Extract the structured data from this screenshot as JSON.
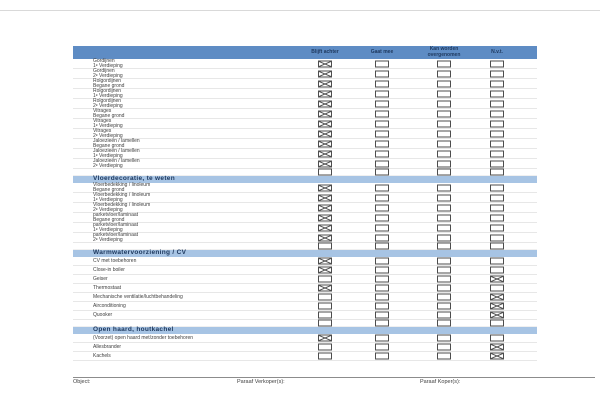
{
  "table": {
    "columns": [
      "Blijft achter",
      "Gaat mee",
      "Kan worden overgenomen",
      "N.v.t."
    ],
    "column_keys": [
      "blijft-achter",
      "gaat-mee",
      "kan-worden-overgenomen",
      "nvt"
    ],
    "sections": [
      {
        "title": "",
        "rows": [
          {
            "label": "Gordijnen",
            "sub": "1ᵉ Verdieping",
            "checks": [
              1,
              0,
              0,
              0
            ]
          },
          {
            "label": "Gordijnen",
            "sub": "2ᵉ Verdieping",
            "checks": [
              1,
              0,
              0,
              0
            ]
          },
          {
            "label": "Rolgordijnen",
            "sub": "Begane grond",
            "checks": [
              1,
              0,
              0,
              0
            ]
          },
          {
            "label": "Rolgordijnen",
            "sub": "1ᵉ Verdieping",
            "checks": [
              1,
              0,
              0,
              0
            ]
          },
          {
            "label": "Rolgordijnen",
            "sub": "2ᵉ Verdieping",
            "checks": [
              1,
              0,
              0,
              0
            ]
          },
          {
            "label": "Vitrages",
            "sub": "Begane grond",
            "checks": [
              1,
              0,
              0,
              0
            ]
          },
          {
            "label": "Vitrages",
            "sub": "1ᵉ Verdieping",
            "checks": [
              1,
              0,
              0,
              0
            ]
          },
          {
            "label": "Vitrages",
            "sub": "2ᵉ Verdieping",
            "checks": [
              1,
              0,
              0,
              0
            ]
          },
          {
            "label": "Jaloezieën / lamellen",
            "sub": "Begane grond",
            "checks": [
              1,
              0,
              0,
              0
            ]
          },
          {
            "label": "Jaloezieën / lamellen",
            "sub": "1ᵉ Verdieping",
            "checks": [
              1,
              0,
              0,
              0
            ]
          },
          {
            "label": "Jaloezieën / lamellen",
            "sub": "2ᵉ Verdieping",
            "checks": [
              1,
              0,
              0,
              0
            ]
          },
          {
            "label": "",
            "sub": "",
            "checks": [
              0,
              0,
              0,
              0
            ]
          }
        ]
      },
      {
        "title": "Vloerdecoratie, te weten",
        "rows": [
          {
            "label": "Vloerbedekking / linoleum",
            "sub": "Begane grond",
            "checks": [
              1,
              0,
              0,
              0
            ]
          },
          {
            "label": "Vloerbedekking / linoleum",
            "sub": "1ᵉ Verdieping",
            "checks": [
              1,
              0,
              0,
              0
            ]
          },
          {
            "label": "Vloerbedekking / linoleum",
            "sub": "2ᵉ Verdieping",
            "checks": [
              1,
              0,
              0,
              0
            ]
          },
          {
            "label": "parketvloer/laminaat",
            "sub": "Begane grond",
            "checks": [
              1,
              0,
              0,
              0
            ]
          },
          {
            "label": "parketvloer/laminaat",
            "sub": "1ᵉ Verdieping",
            "checks": [
              1,
              0,
              0,
              0
            ]
          },
          {
            "label": "parketvloer/laminaat",
            "sub": "2ᵉ Verdieping",
            "checks": [
              1,
              0,
              0,
              0
            ]
          },
          {
            "label": "",
            "sub": "",
            "checks": [
              0,
              0,
              0,
              0
            ]
          }
        ]
      },
      {
        "title": "Warmwatervoorziening / CV",
        "rows": [
          {
            "label": "CV met toebehoren",
            "sub": "",
            "checks": [
              1,
              0,
              0,
              0
            ]
          },
          {
            "label": "Close-in boiler",
            "sub": "",
            "checks": [
              1,
              0,
              0,
              0
            ]
          },
          {
            "label": "Geiser",
            "sub": "",
            "checks": [
              0,
              0,
              0,
              1
            ]
          },
          {
            "label": "Thermostaat",
            "sub": "",
            "checks": [
              1,
              0,
              0,
              0
            ]
          },
          {
            "label": "Mechanische ventilatie/luchtbehandeling",
            "sub": "",
            "checks": [
              0,
              0,
              0,
              1
            ]
          },
          {
            "label": "Airconditioning",
            "sub": "",
            "checks": [
              0,
              0,
              0,
              1
            ]
          },
          {
            "label": "Quooker",
            "sub": "",
            "checks": [
              0,
              0,
              0,
              1
            ]
          },
          {
            "label": "",
            "sub": "",
            "checks": [
              0,
              0,
              0,
              0
            ]
          }
        ]
      },
      {
        "title": "Open haard, houtkachel",
        "rows": [
          {
            "label": "(Voorzet) open haard met/zonder toebehoren",
            "sub": "",
            "checks": [
              1,
              0,
              0,
              0
            ]
          },
          {
            "label": "Allesbrander",
            "sub": "",
            "checks": [
              0,
              0,
              0,
              1
            ]
          },
          {
            "label": "Kachels",
            "sub": "",
            "checks": [
              0,
              0,
              0,
              1
            ]
          }
        ]
      }
    ]
  },
  "footer": {
    "object_label": "Object:",
    "paraaf_verkoper_label": "Paraaf Verkoper(s):",
    "paraaf_koper_label": "Paraaf Koper(s):"
  },
  "colors": {
    "header_bar": "#5e8cc4",
    "section_bar": "#a7c4e4",
    "heading_text": "#1f3a60",
    "body_text": "#404040"
  }
}
